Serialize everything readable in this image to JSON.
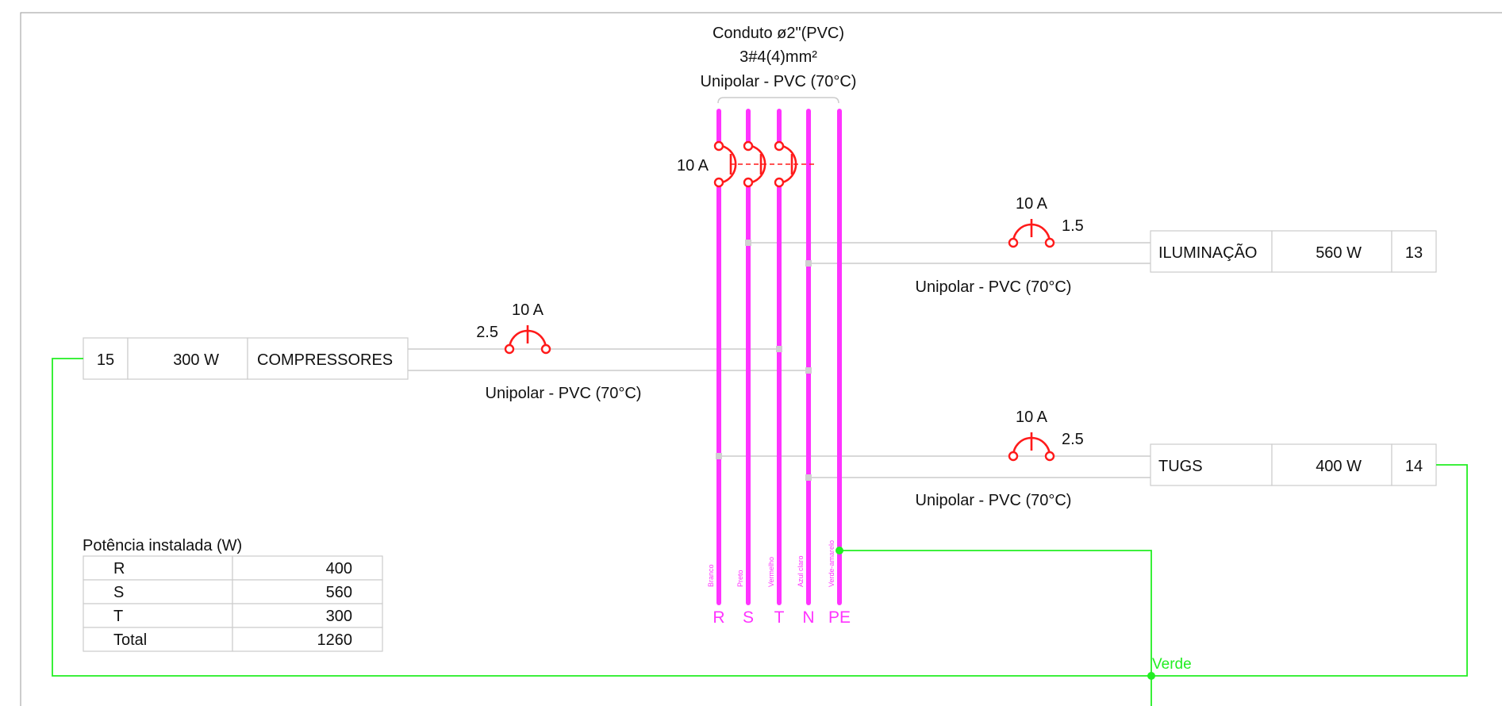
{
  "conduit": {
    "line1": "Conduto ø2\"(PVC)",
    "line2": "3#4(4)mm²",
    "line3": "Unipolar - PVC (70°C)"
  },
  "main_breaker": {
    "label": "10 A"
  },
  "buses": [
    {
      "label": "R",
      "color_name": "Branco"
    },
    {
      "label": "S",
      "color_name": "Preto"
    },
    {
      "label": "T",
      "color_name": "Vermelho"
    },
    {
      "label": "N",
      "color_name": "Azul claro"
    },
    {
      "label": "PE",
      "color_name": "Verde-amarelo"
    }
  ],
  "circuits": {
    "iluminacao": {
      "name": "ILUMINAÇÃO",
      "power": "560 W",
      "number": "13",
      "breaker": "10 A",
      "section": "1.5",
      "cable": "Unipolar - PVC (70°C)"
    },
    "compressores": {
      "name": "COMPRESSORES",
      "power": "300 W",
      "number": "15",
      "breaker": "10 A",
      "section": "2.5",
      "cable": "Unipolar - PVC (70°C)"
    },
    "tugs": {
      "name": "TUGS",
      "power": "400 W",
      "number": "14",
      "breaker": "10 A",
      "section": "2.5",
      "cable": "Unipolar - PVC (70°C)"
    }
  },
  "ground": {
    "label": "Verde"
  },
  "power_table": {
    "title": "Potência instalada (W)",
    "rows": [
      {
        "phase": "R",
        "value": "400"
      },
      {
        "phase": "S",
        "value": "560"
      },
      {
        "phase": "T",
        "value": "300"
      },
      {
        "phase": "Total",
        "value": "1260"
      }
    ]
  },
  "colors": {
    "bus": "#ff33ff",
    "breaker": "#ff1a1a",
    "ground": "#22ee22",
    "wire": "#cccccc"
  }
}
